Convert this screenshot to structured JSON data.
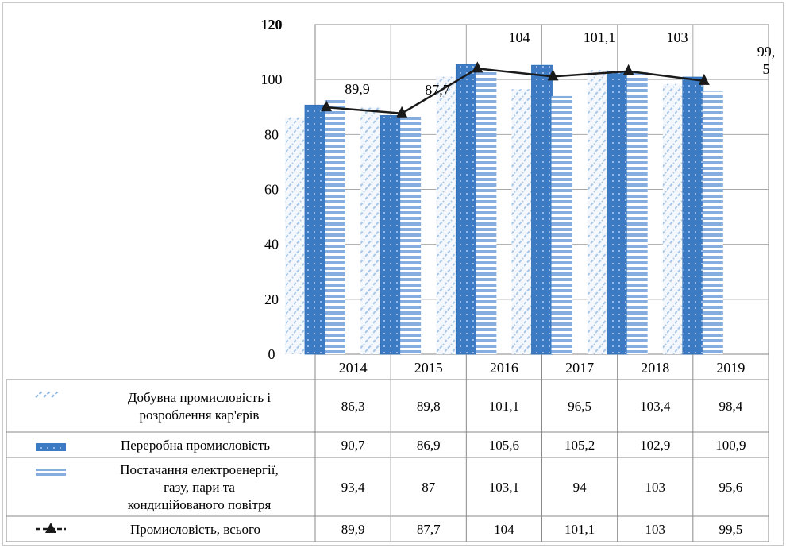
{
  "chart_data": {
    "type": "bar",
    "title": "",
    "xlabel": "",
    "ylabel": "",
    "ylim": [
      0,
      120
    ],
    "yticks": [
      0,
      20,
      40,
      60,
      80,
      100,
      120
    ],
    "categories": [
      "2014",
      "2015",
      "2016",
      "2017",
      "2018",
      "2019"
    ],
    "grid": true,
    "legend": "data-table-left",
    "series": [
      {
        "name": "Добувна промисловість і розроблення кар'єрів",
        "type": "bar",
        "pattern": "diagonal-dashed",
        "color": "#8fb6e0",
        "values": [
          86.3,
          89.8,
          101.1,
          96.5,
          103.4,
          98.4
        ],
        "labels": [
          "86,3",
          "89,8",
          "101,1",
          "96,5",
          "103,4",
          "98,4"
        ]
      },
      {
        "name": "Переробна промисловість",
        "type": "bar",
        "pattern": "solid-dots",
        "color": "#3f7fc6",
        "values": [
          90.7,
          86.9,
          105.6,
          105.2,
          102.9,
          100.9
        ],
        "labels": [
          "90,7",
          "86,9",
          "105,6",
          "105,2",
          "102,9",
          "100,9"
        ]
      },
      {
        "name": "Постачання електроенергії, газу, пари та кондиційованого повітря",
        "type": "bar",
        "pattern": "horizontal-stripes",
        "color": "#7fa9dd",
        "values": [
          93.4,
          87,
          103.1,
          94,
          103,
          95.6
        ],
        "labels": [
          "93,4",
          "87",
          "103,1",
          "94",
          "103",
          "95,6"
        ]
      },
      {
        "name": "Промисловість, всього",
        "type": "line",
        "marker": "triangle",
        "color": "#1a1a1a",
        "values": [
          89.9,
          87.7,
          104,
          101.1,
          103,
          99.5
        ],
        "labels": [
          "89,9",
          "87,7",
          "104",
          "101,1",
          "103",
          "99,5"
        ],
        "point_labels": [
          "89,9",
          "87,7",
          "104",
          "101,1",
          "103",
          "99,\n5"
        ]
      }
    ],
    "y_tick_labels": [
      "0",
      "20",
      "40",
      "60",
      "80",
      "100",
      "120"
    ]
  }
}
